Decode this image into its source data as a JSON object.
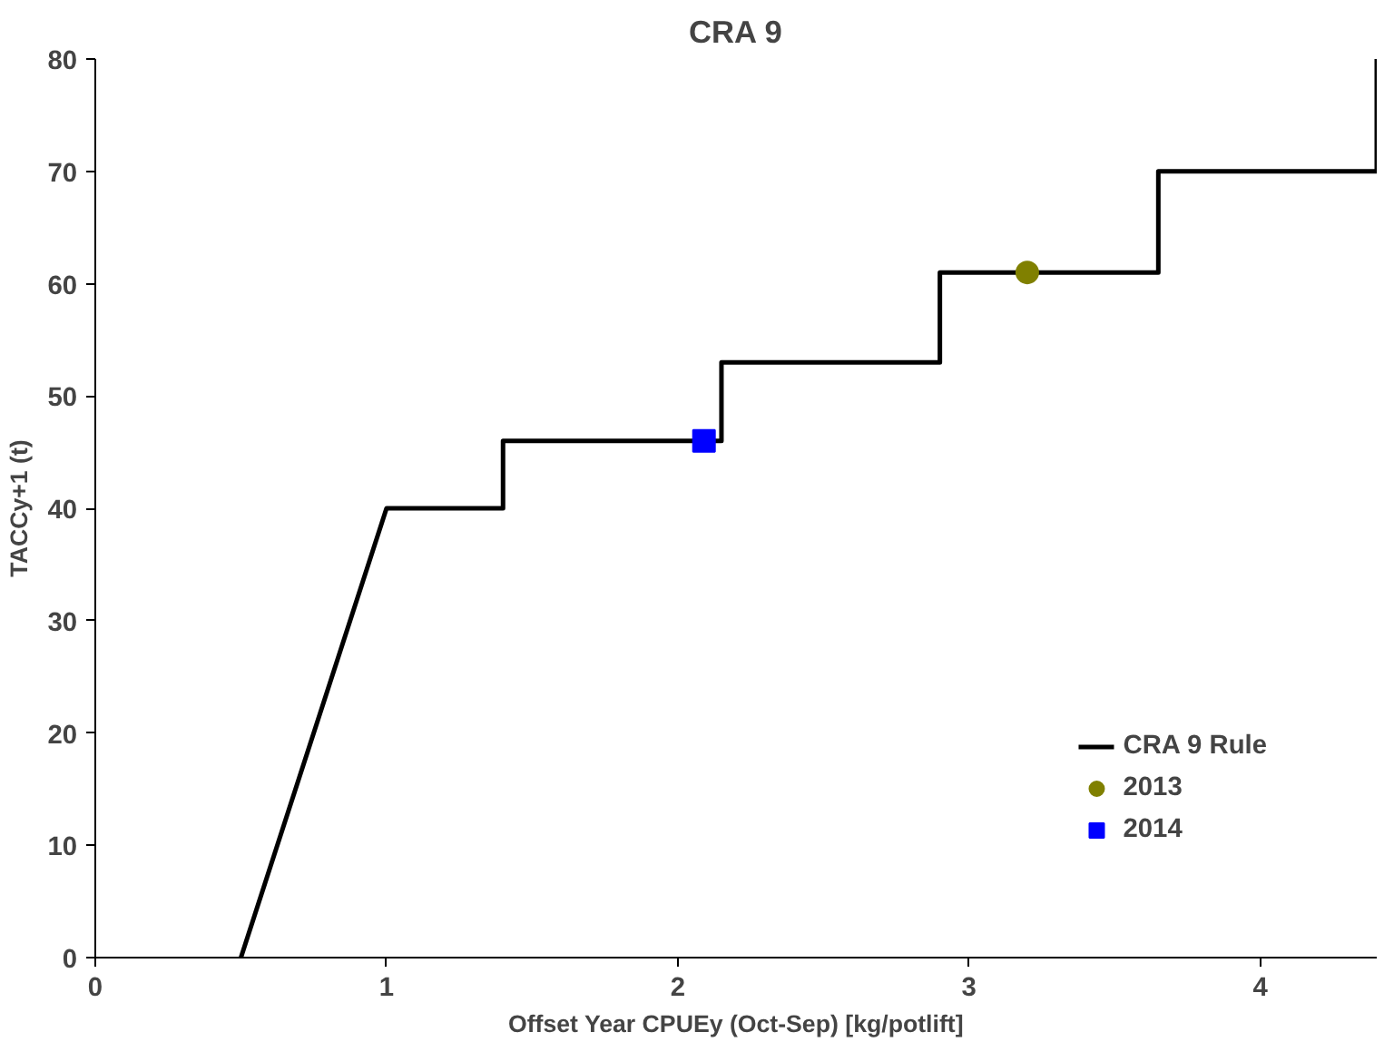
{
  "chart_data": {
    "type": "line",
    "title": "CRA 9",
    "xlabel": "Offset Year CPUEy (Oct-Sep) [kg/potlift]",
    "ylabel": "TACCy+1 (t)",
    "xlim": [
      0,
      4.4
    ],
    "ylim": [
      0,
      80
    ],
    "xticks": [
      0,
      1,
      2,
      3,
      4
    ],
    "yticks": [
      0,
      10,
      20,
      30,
      40,
      50,
      60,
      70,
      80
    ],
    "grid": false,
    "legend": "bottom right",
    "series": [
      {
        "name": "CRA 9 Rule",
        "color": "#000000",
        "marker": "none",
        "x": [
          0.5,
          1,
          1.4,
          1.4,
          2.15,
          2.15,
          2.9,
          2.9,
          3.65,
          3.65,
          4.4,
          4.4
        ],
        "values": [
          0,
          40,
          40,
          46,
          46,
          53,
          53,
          61,
          61,
          70,
          70,
          80
        ]
      },
      {
        "name": "2013",
        "type": "scatter",
        "color": "#808000",
        "marker": "circle",
        "x": [
          3.2
        ],
        "values": [
          61
        ]
      },
      {
        "name": "2014",
        "type": "scatter",
        "color": "#0000ff",
        "marker": "square",
        "x": [
          2.09
        ],
        "values": [
          46
        ]
      }
    ]
  }
}
